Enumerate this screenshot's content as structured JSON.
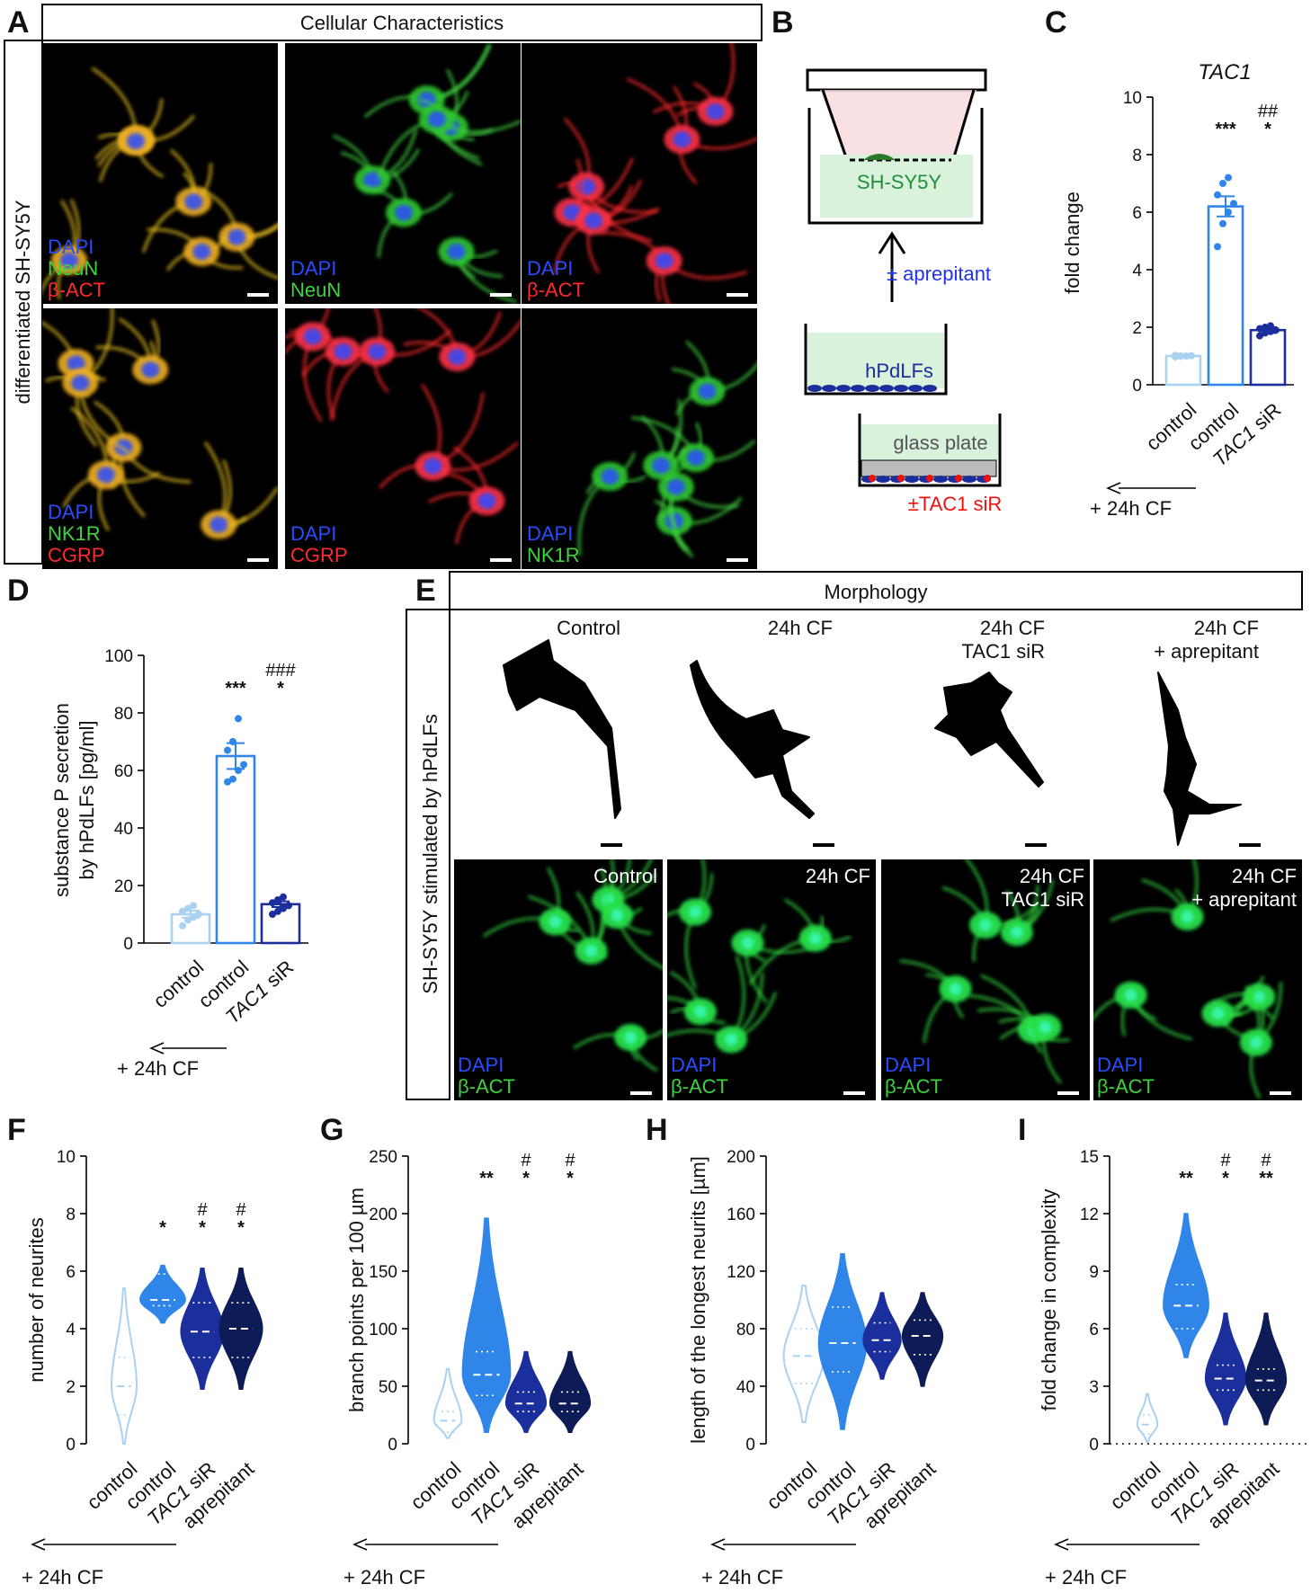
{
  "colors": {
    "control": "#a9d2f0",
    "cf": "#2f86e8",
    "siR": "#1b2f9c",
    "aprepitant": "#0d1b57",
    "dapi": "#2a4cff",
    "green": "#3fd23f",
    "red": "#ff2a2a",
    "ink": "#111111"
  },
  "panelA": {
    "letter": "A",
    "header": "Cellular Characteristics",
    "side_label": "differentiated SH-SY5Y",
    "tiles": [
      {
        "lines": [
          "DAPI",
          "NeuN",
          "β-ACT"
        ]
      },
      {
        "lines": [
          "DAPI",
          "NeuN"
        ]
      },
      {
        "lines": [
          "DAPI",
          "β-ACT"
        ]
      },
      {
        "lines": [
          "DAPI",
          "NK1R",
          "CGRP"
        ]
      },
      {
        "lines": [
          "DAPI",
          "CGRP"
        ]
      },
      {
        "lines": [
          "DAPI",
          "NK1R"
        ]
      }
    ]
  },
  "panelB": {
    "letter": "B",
    "insert_label": "SH-SY5Y",
    "arrow_label": "± aprepitant",
    "fibroblast_label": "hPdLFs",
    "plate_label": "glass plate",
    "sir_label": "±TAC1 siR"
  },
  "panelE": {
    "letter": "E",
    "header": "Morphology",
    "side_label": "SH-SY5Y stimulated by hPdLFs",
    "conditions": [
      {
        "lines": [
          "Control"
        ]
      },
      {
        "lines": [
          "24h CF"
        ]
      },
      {
        "lines": [
          "24h CF",
          "TAC1 siR"
        ]
      },
      {
        "lines": [
          "24h CF",
          "+ aprepitant"
        ]
      }
    ],
    "stain_lines": [
      "DAPI",
      "β-ACT"
    ]
  },
  "shared": {
    "cf_label": "+ 24h CF"
  },
  "chart_data": [
    {
      "panel": "C",
      "type": "bar",
      "title": "TAC1",
      "ylabel": "fold change",
      "ylim": [
        0,
        10
      ],
      "yticks": [
        0,
        2,
        4,
        6,
        8,
        10
      ],
      "categories": [
        "control",
        "control",
        "TAC1 siR"
      ],
      "values": [
        1.0,
        6.2,
        1.9
      ],
      "errors": [
        0.03,
        0.35,
        0.1
      ],
      "points": [
        [
          0.97,
          0.99,
          1.0,
          1.01,
          1.02,
          1.0
        ],
        [
          4.8,
          5.6,
          6.0,
          6.3,
          6.6,
          7.0,
          7.2
        ],
        [
          1.7,
          1.8,
          1.85,
          1.9,
          1.95,
          2.0,
          2.05
        ]
      ],
      "sig_star": [
        "",
        "***",
        "*"
      ],
      "sig_hash": [
        "",
        "",
        "##"
      ]
    },
    {
      "panel": "D",
      "type": "bar",
      "title": "",
      "ylabel": "substance P secretion\nby hPdLFs [pg/ml]",
      "ylim": [
        0,
        100
      ],
      "yticks": [
        0,
        20,
        40,
        60,
        80,
        100
      ],
      "categories": [
        "control",
        "control",
        "TAC1 siR"
      ],
      "values": [
        10,
        65,
        13.5
      ],
      "errors": [
        1.2,
        4.5,
        1.0
      ],
      "points": [
        [
          6,
          8,
          9,
          10,
          11,
          12,
          13
        ],
        [
          56,
          57,
          60,
          62,
          67,
          70,
          78
        ],
        [
          10,
          11,
          12,
          13,
          14,
          15,
          16
        ]
      ],
      "sig_star": [
        "",
        "***",
        "*"
      ],
      "sig_hash": [
        "",
        "",
        "###"
      ]
    },
    {
      "panel": "F",
      "type": "violin",
      "title": "",
      "ylabel": "number of neurites",
      "ylim": [
        0,
        10
      ],
      "yticks": [
        0,
        2,
        4,
        6,
        8,
        10
      ],
      "categories": [
        "control",
        "control",
        "TAC1 siR",
        "aprepitant"
      ],
      "medians": [
        2,
        5,
        3.9,
        4
      ],
      "quartiles": [
        [
          1,
          3
        ],
        [
          4.8,
          5.9
        ],
        [
          3,
          4.9
        ],
        [
          3,
          4.9
        ]
      ],
      "ranges": [
        [
          0,
          5.4
        ],
        [
          4.2,
          6.2
        ],
        [
          1.9,
          6.1
        ],
        [
          1.9,
          6.1
        ]
      ],
      "widths": [
        0.5,
        0.9,
        0.85,
        0.85
      ],
      "sig_star": [
        "",
        "*",
        "*",
        "*"
      ],
      "sig_hash": [
        "",
        "",
        "#",
        "#"
      ]
    },
    {
      "panel": "G",
      "type": "violin",
      "title": "",
      "ylabel": "branch points per 100 µm",
      "ylim": [
        0,
        250
      ],
      "yticks": [
        0,
        50,
        100,
        150,
        200,
        250
      ],
      "categories": [
        "control",
        "control",
        "TAC1 siR",
        "aprepitant"
      ],
      "medians": [
        20,
        60,
        35,
        35
      ],
      "quartiles": [
        [
          10,
          28
        ],
        [
          42,
          80
        ],
        [
          28,
          45
        ],
        [
          28,
          45
        ]
      ],
      "ranges": [
        [
          5,
          65
        ],
        [
          10,
          196
        ],
        [
          10,
          80
        ],
        [
          10,
          80
        ]
      ],
      "widths": [
        0.55,
        0.95,
        0.8,
        0.8
      ],
      "sig_star": [
        "",
        "**",
        "*",
        "*"
      ],
      "sig_hash": [
        "",
        "",
        "#",
        "#"
      ]
    },
    {
      "panel": "H",
      "type": "violin",
      "title": "",
      "ylabel": "length of the longest neurits [µm]",
      "ylim": [
        0,
        200
      ],
      "yticks": [
        0,
        40,
        80,
        120,
        160,
        200
      ],
      "categories": [
        "control",
        "control",
        "TAC1 siR",
        "aprepitant"
      ],
      "medians": [
        61,
        70,
        72,
        75
      ],
      "quartiles": [
        [
          42,
          80
        ],
        [
          50,
          95
        ],
        [
          64,
          84
        ],
        [
          62,
          86
        ]
      ],
      "ranges": [
        [
          15,
          110
        ],
        [
          10,
          132
        ],
        [
          45,
          105
        ],
        [
          40,
          105
        ]
      ],
      "widths": [
        0.8,
        0.95,
        0.75,
        0.8
      ],
      "sig_star": [
        "",
        "",
        "",
        ""
      ],
      "sig_hash": [
        "",
        "",
        "",
        ""
      ]
    },
    {
      "panel": "I",
      "type": "violin",
      "title": "",
      "ylabel": "fold change in complexity",
      "ylim": [
        0,
        15
      ],
      "yticks": [
        0,
        3,
        6,
        9,
        12,
        15
      ],
      "categories": [
        "control",
        "control",
        "TAC1 siR",
        "aprepitant"
      ],
      "medians": [
        1,
        7.2,
        3.4,
        3.3
      ],
      "quartiles": [
        [
          0.5,
          1.5
        ],
        [
          6,
          8.3
        ],
        [
          2.8,
          4.1
        ],
        [
          2.8,
          3.9
        ]
      ],
      "ranges": [
        [
          0.1,
          2.6
        ],
        [
          4.5,
          12
        ],
        [
          1,
          6.8
        ],
        [
          1,
          6.8
        ]
      ],
      "widths": [
        0.4,
        0.9,
        0.8,
        0.8
      ],
      "zero_line": true,
      "sig_star": [
        "",
        "**",
        "*",
        "**"
      ],
      "sig_hash": [
        "",
        "",
        "#",
        "#"
      ]
    }
  ]
}
